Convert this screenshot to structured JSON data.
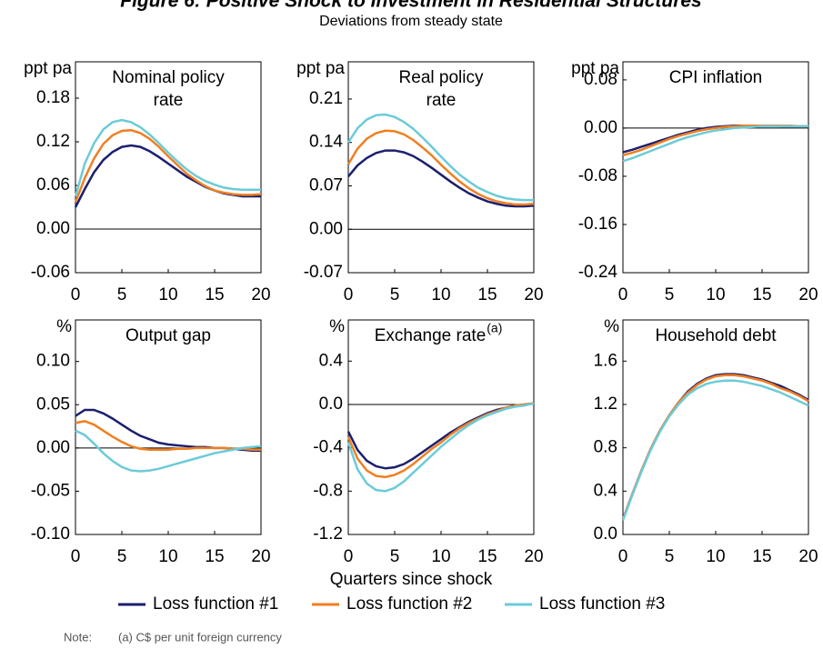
{
  "figure": {
    "title": "Figure 6: Positive Shock to Investment in Residential Structures",
    "subtitle": "Deviations from steady state",
    "xlabel": "Quarters since shock",
    "note_label": "Note:",
    "note": "(a) C$ per unit foreign currency"
  },
  "chart_data": [
    {
      "type": "line",
      "title": [
        "Nominal policy",
        "rate"
      ],
      "ylabel": "ppt pa",
      "x": [
        0,
        1,
        2,
        3,
        4,
        5,
        6,
        7,
        8,
        9,
        10,
        11,
        12,
        13,
        14,
        15,
        16,
        17,
        18,
        19,
        20
      ],
      "xlim": [
        0,
        20
      ],
      "xticks": [
        0,
        5,
        10,
        15,
        20
      ],
      "ylim": [
        -0.06,
        0.23
      ],
      "yticks": [
        -0.06,
        {
          "value": 0,
          "label": "0.00"
        },
        0.06,
        0.12,
        0.18
      ],
      "series": [
        {
          "name": "Loss function #1",
          "color": "#1c1f6e",
          "values": [
            0.03,
            0.055,
            0.078,
            0.095,
            0.106,
            0.113,
            0.115,
            0.113,
            0.107,
            0.099,
            0.09,
            0.081,
            0.072,
            0.065,
            0.058,
            0.053,
            0.049,
            0.047,
            0.045,
            0.045,
            0.045
          ]
        },
        {
          "name": "Loss function #2",
          "color": "#f07f21",
          "values": [
            0.037,
            0.07,
            0.097,
            0.117,
            0.129,
            0.135,
            0.136,
            0.132,
            0.124,
            0.113,
            0.1,
            0.088,
            0.076,
            0.067,
            0.059,
            0.053,
            0.05,
            0.048,
            0.047,
            0.047,
            0.048
          ]
        },
        {
          "name": "Loss function #3",
          "color": "#6ccbd8",
          "values": [
            0.045,
            0.09,
            0.118,
            0.137,
            0.147,
            0.15,
            0.147,
            0.14,
            0.13,
            0.118,
            0.105,
            0.093,
            0.082,
            0.073,
            0.066,
            0.061,
            0.057,
            0.055,
            0.054,
            0.054,
            0.054
          ]
        }
      ]
    },
    {
      "type": "line",
      "title": [
        "Real policy",
        "rate"
      ],
      "ylabel": "ppt pa",
      "x": [
        0,
        1,
        2,
        3,
        4,
        5,
        6,
        7,
        8,
        9,
        10,
        11,
        12,
        13,
        14,
        15,
        16,
        17,
        18,
        19,
        20
      ],
      "xlim": [
        0,
        20
      ],
      "xticks": [
        0,
        5,
        10,
        15,
        20
      ],
      "ylim": [
        -0.07,
        0.27
      ],
      "yticks": [
        -0.07,
        {
          "value": 0,
          "label": "0.00"
        },
        0.07,
        0.14,
        0.21
      ],
      "series": [
        {
          "name": "Loss function #1",
          "color": "#1c1f6e",
          "values": [
            0.085,
            0.103,
            0.115,
            0.123,
            0.127,
            0.127,
            0.124,
            0.118,
            0.109,
            0.099,
            0.088,
            0.077,
            0.067,
            0.058,
            0.051,
            0.045,
            0.041,
            0.038,
            0.037,
            0.037,
            0.038
          ]
        },
        {
          "name": "Loss function #2",
          "color": "#f07f21",
          "values": [
            0.105,
            0.13,
            0.146,
            0.155,
            0.159,
            0.158,
            0.153,
            0.144,
            0.132,
            0.119,
            0.104,
            0.09,
            0.077,
            0.066,
            0.057,
            0.05,
            0.045,
            0.042,
            0.04,
            0.04,
            0.041
          ]
        },
        {
          "name": "Loss function #3",
          "color": "#6ccbd8",
          "values": [
            0.14,
            0.163,
            0.177,
            0.184,
            0.185,
            0.181,
            0.173,
            0.162,
            0.148,
            0.133,
            0.117,
            0.102,
            0.088,
            0.077,
            0.067,
            0.06,
            0.054,
            0.05,
            0.048,
            0.047,
            0.047
          ]
        }
      ]
    },
    {
      "type": "line",
      "title": [
        "CPI inflation"
      ],
      "ylabel": "ppt pa",
      "x": [
        0,
        1,
        2,
        3,
        4,
        5,
        6,
        7,
        8,
        9,
        10,
        11,
        12,
        13,
        14,
        15,
        16,
        17,
        18,
        19,
        20
      ],
      "xlim": [
        0,
        20
      ],
      "xticks": [
        0,
        5,
        10,
        15,
        20
      ],
      "ylim": [
        -0.24,
        0.11
      ],
      "yticks": [
        -0.24,
        -0.16,
        -0.08,
        {
          "value": 0,
          "label": "0.00"
        },
        0.08
      ],
      "series": [
        {
          "name": "Loss function #1",
          "color": "#1c1f6e",
          "values": [
            -0.04,
            -0.036,
            -0.031,
            -0.026,
            -0.021,
            -0.016,
            -0.011,
            -0.007,
            -0.003,
            0,
            0.002,
            0.003,
            0.004,
            0.004,
            0.004,
            0.004,
            0.004,
            0.003,
            0.003,
            0.003,
            0.003
          ]
        },
        {
          "name": "Loss function #2",
          "color": "#f07f21",
          "values": [
            -0.045,
            -0.041,
            -0.036,
            -0.03,
            -0.024,
            -0.018,
            -0.013,
            -0.009,
            -0.005,
            -0.002,
            0,
            0.002,
            0.003,
            0.004,
            0.004,
            0.004,
            0.004,
            0.004,
            0.004,
            0.003,
            0.003
          ]
        },
        {
          "name": "Loss function #3",
          "color": "#6ccbd8",
          "values": [
            -0.055,
            -0.05,
            -0.044,
            -0.038,
            -0.032,
            -0.026,
            -0.02,
            -0.015,
            -0.011,
            -0.007,
            -0.004,
            -0.002,
            0,
            0.001,
            0.002,
            0.003,
            0.003,
            0.003,
            0.003,
            0.003,
            0.003
          ]
        }
      ]
    },
    {
      "type": "line",
      "title": [
        "Output gap"
      ],
      "ylabel": "%",
      "x": [
        0,
        1,
        2,
        3,
        4,
        5,
        6,
        7,
        8,
        9,
        10,
        11,
        12,
        13,
        14,
        15,
        16,
        17,
        18,
        19,
        20
      ],
      "xlim": [
        0,
        20
      ],
      "xticks": [
        0,
        5,
        10,
        15,
        20
      ],
      "ylim": [
        -0.1,
        0.148
      ],
      "yticks": [
        {
          "value": -0.1,
          "label": "-0.10"
        },
        -0.05,
        {
          "value": 0,
          "label": "0.00"
        },
        0.05,
        {
          "value": 0.1,
          "label": "0.10"
        }
      ],
      "series": [
        {
          "name": "Loss function #1",
          "color": "#1c1f6e",
          "values": [
            0.037,
            0.044,
            0.044,
            0.04,
            0.034,
            0.027,
            0.02,
            0.014,
            0.01,
            0.006,
            0.004,
            0.003,
            0.002,
            0.001,
            0.001,
            0,
            0,
            -0.001,
            -0.002,
            -0.003,
            -0.003
          ]
        },
        {
          "name": "Loss function #2",
          "color": "#f07f21",
          "values": [
            0.029,
            0.031,
            0.027,
            0.02,
            0.013,
            0.007,
            0.002,
            -0.001,
            -0.002,
            -0.002,
            -0.002,
            -0.001,
            -0.001,
            0,
            0,
            0,
            0,
            -0.001,
            -0.001,
            -0.002,
            -0.002
          ]
        },
        {
          "name": "Loss function #3",
          "color": "#6ccbd8",
          "values": [
            0.02,
            0.015,
            0.005,
            -0.006,
            -0.015,
            -0.022,
            -0.026,
            -0.027,
            -0.026,
            -0.024,
            -0.021,
            -0.018,
            -0.015,
            -0.012,
            -0.009,
            -0.006,
            -0.004,
            -0.002,
            0,
            0.001,
            0.002
          ]
        }
      ]
    },
    {
      "type": "line",
      "title": [
        "Exchange rate"
      ],
      "title_superscript": "(a)",
      "ylabel": "%",
      "x": [
        0,
        1,
        2,
        3,
        4,
        5,
        6,
        7,
        8,
        9,
        10,
        11,
        12,
        13,
        14,
        15,
        16,
        17,
        18,
        19,
        20
      ],
      "xlim": [
        0,
        20
      ],
      "xticks": [
        0,
        5,
        10,
        15,
        20
      ],
      "ylim": [
        -1.2,
        0.78
      ],
      "yticks": [
        -1.2,
        -0.8,
        -0.4,
        {
          "value": 0,
          "label": "0.0"
        },
        0.4
      ],
      "series": [
        {
          "name": "Loss function #1",
          "color": "#1c1f6e",
          "values": [
            -0.25,
            -0.42,
            -0.52,
            -0.57,
            -0.59,
            -0.58,
            -0.55,
            -0.5,
            -0.44,
            -0.38,
            -0.32,
            -0.26,
            -0.21,
            -0.16,
            -0.12,
            -0.08,
            -0.05,
            -0.03,
            -0.01,
            0,
            0.01
          ]
        },
        {
          "name": "Loss function #2",
          "color": "#f07f21",
          "values": [
            -0.3,
            -0.5,
            -0.61,
            -0.66,
            -0.67,
            -0.65,
            -0.61,
            -0.55,
            -0.48,
            -0.41,
            -0.35,
            -0.28,
            -0.22,
            -0.17,
            -0.13,
            -0.09,
            -0.06,
            -0.03,
            -0.01,
            0,
            0.01
          ]
        },
        {
          "name": "Loss function #3",
          "color": "#6ccbd8",
          "values": [
            -0.35,
            -0.6,
            -0.73,
            -0.79,
            -0.8,
            -0.77,
            -0.71,
            -0.63,
            -0.55,
            -0.47,
            -0.39,
            -0.32,
            -0.25,
            -0.19,
            -0.14,
            -0.1,
            -0.07,
            -0.04,
            -0.02,
            -0.01,
            0.01
          ]
        }
      ]
    },
    {
      "type": "line",
      "title": [
        "Household debt"
      ],
      "ylabel": "%",
      "x": [
        0,
        1,
        2,
        3,
        4,
        5,
        6,
        7,
        8,
        9,
        10,
        11,
        12,
        13,
        14,
        15,
        16,
        17,
        18,
        19,
        20
      ],
      "xlim": [
        0,
        20
      ],
      "xticks": [
        0,
        5,
        10,
        15,
        20
      ],
      "ylim": [
        0,
        1.98
      ],
      "yticks": [
        {
          "value": 0,
          "label": "0.0"
        },
        0.4,
        0.8,
        1.2,
        1.6
      ],
      "series": [
        {
          "name": "Loss function #1",
          "color": "#1c1f6e",
          "values": [
            0.14,
            0.37,
            0.59,
            0.79,
            0.96,
            1.1,
            1.22,
            1.32,
            1.39,
            1.44,
            1.47,
            1.48,
            1.48,
            1.47,
            1.45,
            1.43,
            1.4,
            1.37,
            1.33,
            1.29,
            1.24
          ]
        },
        {
          "name": "Loss function #2",
          "color": "#f07f21",
          "values": [
            0.14,
            0.37,
            0.59,
            0.79,
            0.96,
            1.1,
            1.22,
            1.31,
            1.38,
            1.43,
            1.46,
            1.47,
            1.47,
            1.46,
            1.44,
            1.42,
            1.39,
            1.35,
            1.32,
            1.28,
            1.23
          ]
        },
        {
          "name": "Loss function #3",
          "color": "#6ccbd8",
          "values": [
            0.13,
            0.36,
            0.58,
            0.78,
            0.95,
            1.09,
            1.2,
            1.29,
            1.35,
            1.39,
            1.41,
            1.42,
            1.42,
            1.41,
            1.39,
            1.37,
            1.34,
            1.31,
            1.27,
            1.23,
            1.19
          ]
        }
      ]
    }
  ]
}
